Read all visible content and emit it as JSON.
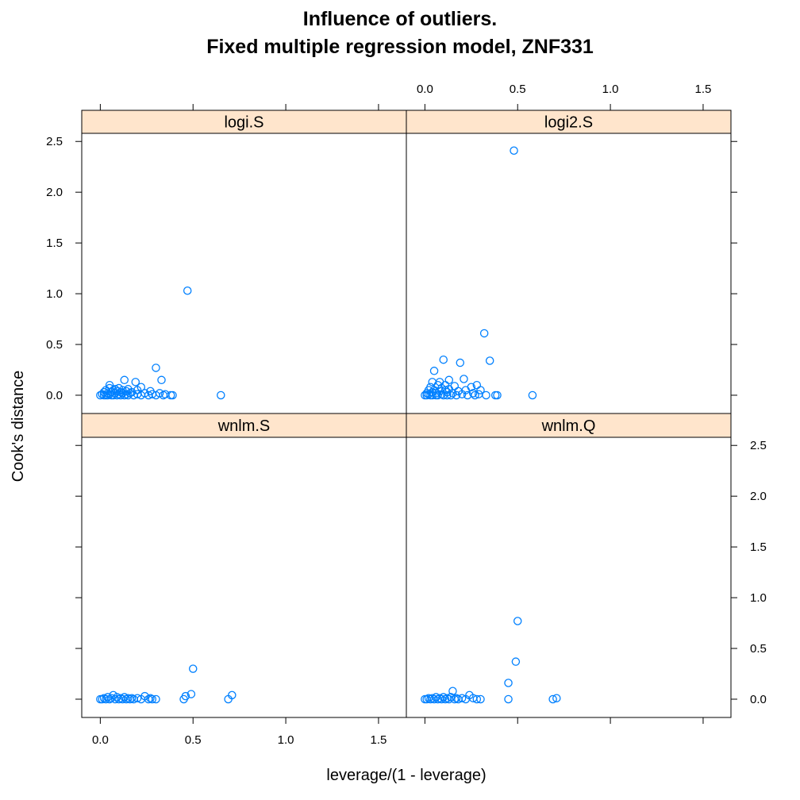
{
  "chart_data": {
    "type": "scatter",
    "title": [
      "Influence of outliers.",
      "Fixed multiple regression model, ZNF331"
    ],
    "xlabel": "leverage/(1 - leverage)",
    "ylabel": "Cook's distance",
    "xlim": [
      -0.1,
      1.65
    ],
    "ylim": [
      -0.18,
      2.58
    ],
    "xticks": [
      0.0,
      0.5,
      1.0,
      1.5
    ],
    "xtick_labels": [
      "0.0",
      "0.5",
      "1.0",
      "1.5"
    ],
    "yticks": [
      0.0,
      0.5,
      1.0,
      1.5,
      2.0,
      2.5
    ],
    "ytick_labels": [
      "0.0",
      "0.5",
      "1.0",
      "1.5",
      "2.0",
      "2.5"
    ],
    "color": "#0080ff",
    "strip_color": "#ffe5cc",
    "layout": "2x2",
    "panels": [
      {
        "name": "logi.S",
        "points": [
          [
            0.0,
            0.0
          ],
          [
            0.01,
            0.01
          ],
          [
            0.02,
            0.0
          ],
          [
            0.02,
            0.03
          ],
          [
            0.03,
            0.0
          ],
          [
            0.03,
            0.05
          ],
          [
            0.04,
            0.02
          ],
          [
            0.04,
            0.0
          ],
          [
            0.05,
            0.07
          ],
          [
            0.05,
            0.01
          ],
          [
            0.05,
            0.1
          ],
          [
            0.06,
            0.0
          ],
          [
            0.06,
            0.03
          ],
          [
            0.07,
            0.05
          ],
          [
            0.07,
            0.0
          ],
          [
            0.08,
            0.02
          ],
          [
            0.08,
            0.06
          ],
          [
            0.09,
            0.0
          ],
          [
            0.09,
            0.04
          ],
          [
            0.1,
            0.01
          ],
          [
            0.1,
            0.07
          ],
          [
            0.11,
            0.03
          ],
          [
            0.11,
            0.0
          ],
          [
            0.12,
            0.05
          ],
          [
            0.12,
            0.02
          ],
          [
            0.13,
            0.15
          ],
          [
            0.13,
            0.0
          ],
          [
            0.14,
            0.04
          ],
          [
            0.14,
            0.01
          ],
          [
            0.15,
            0.06
          ],
          [
            0.15,
            0.0
          ],
          [
            0.16,
            0.02
          ],
          [
            0.17,
            0.03
          ],
          [
            0.18,
            0.0
          ],
          [
            0.19,
            0.13
          ],
          [
            0.2,
            0.01
          ],
          [
            0.2,
            0.05
          ],
          [
            0.22,
            0.08
          ],
          [
            0.22,
            0.0
          ],
          [
            0.24,
            0.02
          ],
          [
            0.26,
            0.0
          ],
          [
            0.27,
            0.04
          ],
          [
            0.28,
            0.01
          ],
          [
            0.3,
            0.27
          ],
          [
            0.3,
            0.0
          ],
          [
            0.32,
            0.02
          ],
          [
            0.33,
            0.15
          ],
          [
            0.34,
            0.0
          ],
          [
            0.35,
            0.01
          ],
          [
            0.38,
            0.0
          ],
          [
            0.39,
            0.0
          ],
          [
            0.47,
            1.03
          ],
          [
            0.65,
            0.0
          ]
        ]
      },
      {
        "name": "logi2.S",
        "points": [
          [
            0.0,
            0.0
          ],
          [
            0.01,
            0.02
          ],
          [
            0.01,
            0.0
          ],
          [
            0.02,
            0.05
          ],
          [
            0.02,
            0.01
          ],
          [
            0.03,
            0.0
          ],
          [
            0.03,
            0.08
          ],
          [
            0.04,
            0.03
          ],
          [
            0.04,
            0.0
          ],
          [
            0.04,
            0.13
          ],
          [
            0.05,
            0.24
          ],
          [
            0.05,
            0.05
          ],
          [
            0.06,
            0.0
          ],
          [
            0.06,
            0.02
          ],
          [
            0.07,
            0.1
          ],
          [
            0.07,
            0.0
          ],
          [
            0.08,
            0.04
          ],
          [
            0.08,
            0.13
          ],
          [
            0.09,
            0.01
          ],
          [
            0.09,
            0.07
          ],
          [
            0.1,
            0.0
          ],
          [
            0.1,
            0.35
          ],
          [
            0.11,
            0.05
          ],
          [
            0.11,
            0.1
          ],
          [
            0.12,
            0.0
          ],
          [
            0.12,
            0.03
          ],
          [
            0.13,
            0.15
          ],
          [
            0.13,
            0.06
          ],
          [
            0.14,
            0.0
          ],
          [
            0.15,
            0.02
          ],
          [
            0.16,
            0.09
          ],
          [
            0.17,
            0.0
          ],
          [
            0.18,
            0.04
          ],
          [
            0.19,
            0.32
          ],
          [
            0.2,
            0.01
          ],
          [
            0.21,
            0.16
          ],
          [
            0.22,
            0.05
          ],
          [
            0.23,
            0.0
          ],
          [
            0.25,
            0.08
          ],
          [
            0.26,
            0.02
          ],
          [
            0.27,
            0.0
          ],
          [
            0.28,
            0.1
          ],
          [
            0.29,
            0.01
          ],
          [
            0.3,
            0.05
          ],
          [
            0.32,
            0.61
          ],
          [
            0.33,
            0.0
          ],
          [
            0.35,
            0.34
          ],
          [
            0.38,
            0.0
          ],
          [
            0.39,
            0.0
          ],
          [
            0.48,
            2.41
          ],
          [
            0.58,
            0.0
          ]
        ]
      },
      {
        "name": "wnlm.S",
        "points": [
          [
            0.0,
            0.0
          ],
          [
            0.01,
            0.0
          ],
          [
            0.02,
            0.01
          ],
          [
            0.03,
            0.0
          ],
          [
            0.04,
            0.02
          ],
          [
            0.05,
            0.0
          ],
          [
            0.06,
            0.01
          ],
          [
            0.07,
            0.04
          ],
          [
            0.08,
            0.0
          ],
          [
            0.09,
            0.02
          ],
          [
            0.1,
            0.0
          ],
          [
            0.11,
            0.01
          ],
          [
            0.12,
            0.0
          ],
          [
            0.13,
            0.02
          ],
          [
            0.14,
            0.0
          ],
          [
            0.15,
            0.01
          ],
          [
            0.16,
            0.0
          ],
          [
            0.17,
            0.01
          ],
          [
            0.18,
            0.0
          ],
          [
            0.2,
            0.01
          ],
          [
            0.22,
            0.0
          ],
          [
            0.24,
            0.03
          ],
          [
            0.26,
            0.0
          ],
          [
            0.27,
            0.01
          ],
          [
            0.28,
            0.0
          ],
          [
            0.3,
            0.0
          ],
          [
            0.45,
            0.0
          ],
          [
            0.46,
            0.03
          ],
          [
            0.49,
            0.05
          ],
          [
            0.5,
            0.3
          ],
          [
            0.69,
            0.0
          ],
          [
            0.71,
            0.04
          ]
        ]
      },
      {
        "name": "wnlm.Q",
        "points": [
          [
            0.0,
            0.0
          ],
          [
            0.01,
            0.0
          ],
          [
            0.02,
            0.01
          ],
          [
            0.03,
            0.0
          ],
          [
            0.04,
            0.01
          ],
          [
            0.05,
            0.0
          ],
          [
            0.06,
            0.02
          ],
          [
            0.07,
            0.0
          ],
          [
            0.08,
            0.01
          ],
          [
            0.09,
            0.0
          ],
          [
            0.1,
            0.02
          ],
          [
            0.11,
            0.0
          ],
          [
            0.12,
            0.01
          ],
          [
            0.13,
            0.0
          ],
          [
            0.14,
            0.02
          ],
          [
            0.15,
            0.08
          ],
          [
            0.16,
            0.0
          ],
          [
            0.17,
            0.01
          ],
          [
            0.18,
            0.0
          ],
          [
            0.2,
            0.01
          ],
          [
            0.22,
            0.0
          ],
          [
            0.24,
            0.04
          ],
          [
            0.26,
            0.01
          ],
          [
            0.28,
            0.0
          ],
          [
            0.3,
            0.0
          ],
          [
            0.45,
            0.0
          ],
          [
            0.45,
            0.16
          ],
          [
            0.49,
            0.37
          ],
          [
            0.5,
            0.77
          ],
          [
            0.69,
            0.0
          ],
          [
            0.71,
            0.01
          ]
        ]
      }
    ]
  }
}
